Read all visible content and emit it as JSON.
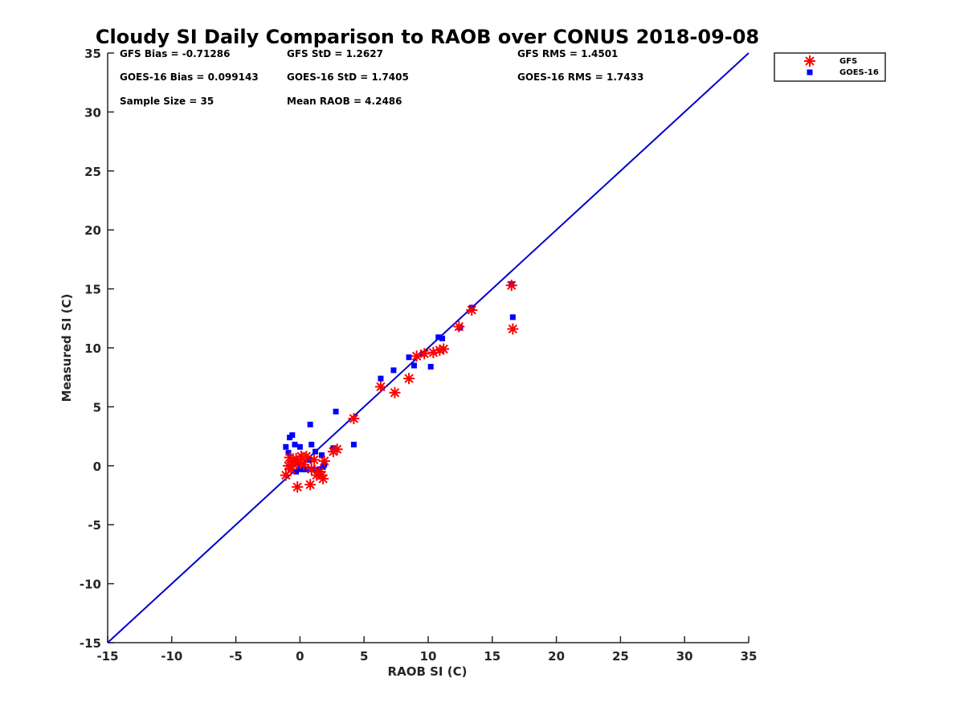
{
  "chart_data": {
    "type": "scatter",
    "title": "Cloudy SI Daily Comparison to RAOB over CONUS 2018-09-08",
    "xlabel": "RAOB SI (C)",
    "ylabel": "Measured SI (C)",
    "xlim": [
      -15,
      35
    ],
    "ylim": [
      -15,
      35
    ],
    "xticks": [
      -15,
      -10,
      -5,
      0,
      5,
      10,
      15,
      20,
      25,
      30,
      35
    ],
    "yticks": [
      -15,
      -10,
      -5,
      0,
      5,
      10,
      15,
      20,
      25,
      30,
      35
    ],
    "grid": false,
    "legend_position": "top-right outside",
    "stats": [
      {
        "label": "GFS Bias = -0.71286"
      },
      {
        "label": "GFS StD = 1.2627"
      },
      {
        "label": "GFS RMS = 1.4501"
      },
      {
        "label": "GOES-16 Bias = 0.099143"
      },
      {
        "label": "GOES-16 StD = 1.7405"
      },
      {
        "label": "GOES-16 RMS = 1.7433"
      },
      {
        "label": "Sample Size = 35"
      },
      {
        "label": "Mean RAOB = 4.2486"
      }
    ],
    "reference_line": {
      "type": "y=x",
      "color": "#0000cc"
    },
    "series": [
      {
        "name": "GFS",
        "marker": "asterisk",
        "color": "#ff0000",
        "x": [
          -1.1,
          -0.9,
          -0.8,
          -0.7,
          -0.6,
          -0.5,
          -0.3,
          -0.2,
          0.1,
          0.3,
          0.5,
          0.8,
          0.9,
          1.1,
          1.3,
          1.5,
          1.7,
          1.8,
          1.9,
          2.6,
          2.9,
          4.2,
          6.3,
          7.4,
          8.5,
          9.1,
          9.7,
          10.4,
          10.9,
          11.2,
          12.4,
          13.4,
          16.5,
          16.6,
          0.0
        ],
        "y": [
          -0.8,
          0.0,
          0.7,
          -0.3,
          0.3,
          0.1,
          0.6,
          -1.8,
          0.8,
          0.1,
          0.8,
          -1.6,
          -0.3,
          0.5,
          -0.8,
          -0.5,
          -0.8,
          -1.1,
          0.4,
          1.2,
          1.4,
          4.0,
          6.7,
          6.2,
          7.4,
          9.3,
          9.5,
          9.6,
          9.8,
          9.9,
          11.8,
          13.2,
          15.3,
          11.6,
          0.3
        ]
      },
      {
        "name": "GOES-16",
        "marker": "square",
        "color": "#0000ff",
        "x": [
          -1.1,
          -0.9,
          -0.8,
          -0.6,
          -0.4,
          -0.3,
          -0.2,
          0.0,
          0.1,
          0.3,
          0.5,
          0.7,
          0.8,
          0.9,
          1.0,
          1.2,
          1.5,
          1.7,
          1.8,
          1.9,
          2.6,
          2.8,
          4.2,
          6.3,
          7.3,
          8.5,
          8.9,
          9.6,
          10.2,
          10.8,
          11.1,
          12.5,
          13.4,
          16.5,
          16.6
        ],
        "y": [
          1.6,
          1.1,
          2.4,
          2.6,
          1.8,
          -0.5,
          0.2,
          1.6,
          -0.3,
          -0.3,
          -0.3,
          0.5,
          3.5,
          1.8,
          -0.3,
          1.2,
          -0.3,
          0.9,
          -0.1,
          0.1,
          1.5,
          4.6,
          1.8,
          7.4,
          8.1,
          9.2,
          8.5,
          9.5,
          8.4,
          10.9,
          10.8,
          11.7,
          13.4,
          15.4,
          12.6
        ]
      }
    ]
  }
}
